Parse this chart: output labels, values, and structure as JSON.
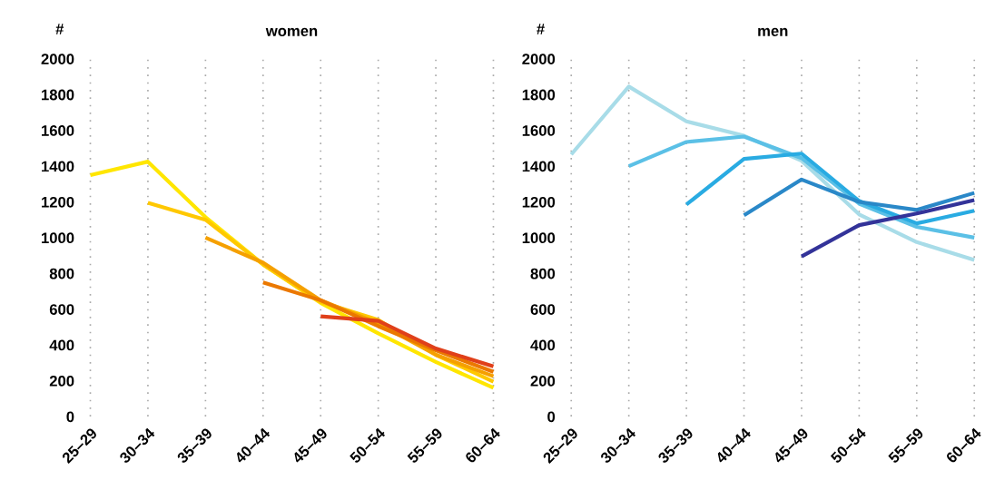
{
  "chart_data": [
    {
      "type": "line",
      "title": "women",
      "ylabel": "#",
      "categories": [
        "25–29",
        "30–34",
        "35–39",
        "40–44",
        "45–49",
        "50–54",
        "55–59",
        "60–64"
      ],
      "ylim": [
        0,
        2000
      ],
      "yticks": [
        0,
        200,
        400,
        600,
        800,
        1000,
        1200,
        1400,
        1600,
        1800,
        2000
      ],
      "grid": "x",
      "line_style": "solid",
      "series": [
        {
          "color": "#ffe600",
          "values": [
            1350,
            1425,
            1115,
            850,
            635,
            465,
            305,
            160
          ]
        },
        {
          "color": "#ffc800",
          "values": [
            null,
            1195,
            1100,
            850,
            640,
            540,
            345,
            195
          ]
        },
        {
          "color": "#f5a000",
          "values": [
            null,
            null,
            1000,
            860,
            650,
            520,
            345,
            225
          ]
        },
        {
          "color": "#eb7800",
          "values": [
            null,
            null,
            null,
            750,
            650,
            505,
            370,
            250
          ]
        },
        {
          "color": "#e0401a",
          "values": [
            null,
            null,
            null,
            null,
            560,
            535,
            380,
            280
          ]
        }
      ]
    },
    {
      "type": "line",
      "title": "men",
      "ylabel": "#",
      "categories": [
        "25–29",
        "30–34",
        "35–39",
        "40–44",
        "45–49",
        "50–54",
        "55–59",
        "60–64"
      ],
      "ylim": [
        0,
        2000
      ],
      "yticks": [
        0,
        200,
        400,
        600,
        800,
        1000,
        1200,
        1400,
        1600,
        1800,
        2000
      ],
      "grid": "x",
      "line_style": "solid",
      "series": [
        {
          "color": "#a8dce8",
          "values": [
            1465,
            1845,
            1650,
            1570,
            1430,
            1130,
            975,
            875
          ]
        },
        {
          "color": "#5bc0e6",
          "values": [
            null,
            1400,
            1535,
            1565,
            1445,
            1190,
            1060,
            1000
          ]
        },
        {
          "color": "#29abe2",
          "values": [
            null,
            null,
            1185,
            1440,
            1470,
            1205,
            1080,
            1150
          ]
        },
        {
          "color": "#2a88c8",
          "values": [
            null,
            null,
            null,
            1125,
            1325,
            1200,
            1155,
            1250
          ]
        },
        {
          "color": "#333399",
          "values": [
            null,
            null,
            null,
            null,
            895,
            1070,
            1135,
            1210
          ]
        }
      ]
    }
  ]
}
